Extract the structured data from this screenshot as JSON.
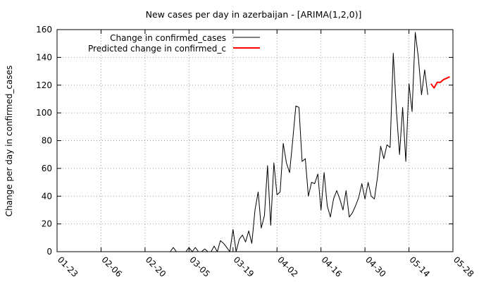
{
  "chart_data": {
    "type": "line",
    "title": "New cases per day in azerbaijan -  [ARIMA(1,2,0)]",
    "xlabel": "",
    "ylabel": "Change per day in confirmed_cases",
    "x_start_date": "2020-01-23",
    "x_end_date": "2020-05-28",
    "x_tick_labels": [
      "01-23",
      "02-06",
      "02-20",
      "03-05",
      "03-19",
      "04-02",
      "04-16",
      "04-30",
      "05-14",
      "05-28"
    ],
    "y_ticks": [
      0,
      20,
      40,
      60,
      80,
      100,
      120,
      140,
      160
    ],
    "ylim": [
      0,
      160
    ],
    "grid": true,
    "legend_position": "top-left",
    "series": [
      {
        "name": "Change in confirmed_cases",
        "color": "#000000",
        "points": [
          [
            "2020-02-28",
            0
          ],
          [
            "2020-02-29",
            3
          ],
          [
            "2020-03-01",
            0
          ],
          [
            "2020-03-02",
            0
          ],
          [
            "2020-03-03",
            0
          ],
          [
            "2020-03-04",
            0
          ],
          [
            "2020-03-05",
            3
          ],
          [
            "2020-03-06",
            0
          ],
          [
            "2020-03-07",
            3
          ],
          [
            "2020-03-08",
            0
          ],
          [
            "2020-03-09",
            0
          ],
          [
            "2020-03-10",
            2
          ],
          [
            "2020-03-11",
            0
          ],
          [
            "2020-03-12",
            0
          ],
          [
            "2020-03-13",
            4
          ],
          [
            "2020-03-14",
            0
          ],
          [
            "2020-03-15",
            8
          ],
          [
            "2020-03-16",
            6
          ],
          [
            "2020-03-17",
            3
          ],
          [
            "2020-03-18",
            0
          ],
          [
            "2020-03-19",
            16
          ],
          [
            "2020-03-20",
            0
          ],
          [
            "2020-03-21",
            9
          ],
          [
            "2020-03-22",
            12
          ],
          [
            "2020-03-23",
            7
          ],
          [
            "2020-03-24",
            15
          ],
          [
            "2020-03-25",
            6
          ],
          [
            "2020-03-26",
            30
          ],
          [
            "2020-03-27",
            43
          ],
          [
            "2020-03-28",
            17
          ],
          [
            "2020-03-29",
            26
          ],
          [
            "2020-03-30",
            62
          ],
          [
            "2020-03-31",
            19
          ],
          [
            "2020-04-01",
            64
          ],
          [
            "2020-04-02",
            41
          ],
          [
            "2020-04-03",
            43
          ],
          [
            "2020-04-04",
            78
          ],
          [
            "2020-04-05",
            64
          ],
          [
            "2020-04-06",
            57
          ],
          [
            "2020-04-07",
            80
          ],
          [
            "2020-04-08",
            105
          ],
          [
            "2020-04-09",
            104
          ],
          [
            "2020-04-10",
            65
          ],
          [
            "2020-04-11",
            67
          ],
          [
            "2020-04-12",
            40
          ],
          [
            "2020-04-13",
            50
          ],
          [
            "2020-04-14",
            49
          ],
          [
            "2020-04-15",
            56
          ],
          [
            "2020-04-16",
            30
          ],
          [
            "2020-04-17",
            57
          ],
          [
            "2020-04-18",
            33
          ],
          [
            "2020-04-19",
            25
          ],
          [
            "2020-04-20",
            38
          ],
          [
            "2020-04-21",
            44
          ],
          [
            "2020-04-22",
            38
          ],
          [
            "2020-04-23",
            30
          ],
          [
            "2020-04-24",
            44
          ],
          [
            "2020-04-25",
            25
          ],
          [
            "2020-04-26",
            28
          ],
          [
            "2020-04-27",
            33
          ],
          [
            "2020-04-28",
            39
          ],
          [
            "2020-04-29",
            49
          ],
          [
            "2020-04-30",
            38
          ],
          [
            "2020-05-01",
            50
          ],
          [
            "2020-05-02",
            40
          ],
          [
            "2020-05-03",
            38
          ],
          [
            "2020-05-04",
            54
          ],
          [
            "2020-05-05",
            76
          ],
          [
            "2020-05-06",
            67
          ],
          [
            "2020-05-07",
            77
          ],
          [
            "2020-05-08",
            75
          ],
          [
            "2020-05-09",
            143
          ],
          [
            "2020-05-10",
            102
          ],
          [
            "2020-05-11",
            70
          ],
          [
            "2020-05-12",
            104
          ],
          [
            "2020-05-13",
            65
          ],
          [
            "2020-05-14",
            121
          ],
          [
            "2020-05-15",
            101
          ],
          [
            "2020-05-16",
            158
          ],
          [
            "2020-05-17",
            140
          ],
          [
            "2020-05-18",
            113
          ],
          [
            "2020-05-19",
            131
          ],
          [
            "2020-05-20",
            113
          ]
        ]
      },
      {
        "name": "Predicted change in confirmed_c",
        "color": "#ff0000",
        "points": [
          [
            "2020-05-21",
            121
          ],
          [
            "2020-05-22",
            118
          ],
          [
            "2020-05-23",
            122
          ],
          [
            "2020-05-24",
            122
          ],
          [
            "2020-05-25",
            124
          ],
          [
            "2020-05-26",
            125
          ],
          [
            "2020-05-27",
            126
          ]
        ]
      }
    ]
  }
}
